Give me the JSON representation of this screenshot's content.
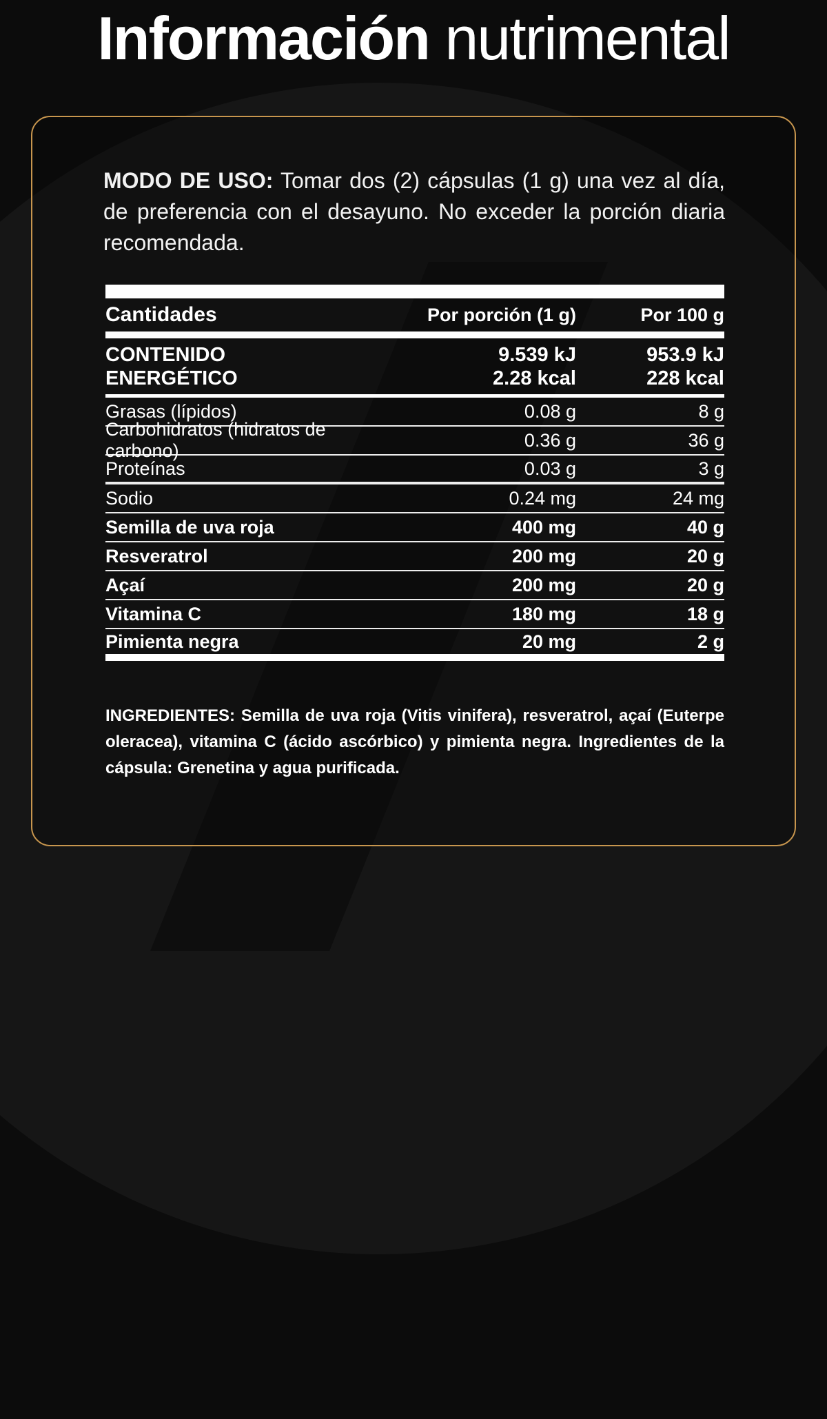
{
  "title": {
    "bold": "Información",
    "light": "nutrimental"
  },
  "modo_uso": {
    "label": "MODO DE USO:",
    "text": "Tomar dos (2) cápsulas (1 g) una vez al día, de preferencia con el desayuno. No exceder la porción diaria recomendada."
  },
  "table": {
    "headers": [
      "Cantidades",
      "Por porción (1 g)",
      "Por 100 g"
    ],
    "energy": {
      "label1": "CONTENIDO",
      "label2": "ENERGÉTICO",
      "per_portion_kj": "9.539 kJ",
      "per_portion_kcal": "2.28 kcal",
      "per100_kj": "953.9 kJ",
      "per100_kcal": "228 kcal"
    },
    "rows": [
      {
        "name": "Grasas (lípidos)",
        "portion": "0.08 g",
        "per100": "8 g"
      },
      {
        "name": "Carbohidratos (hidratos de carbono)",
        "portion": "0.36 g",
        "per100": "36 g"
      },
      {
        "name": "Proteínas",
        "portion": "0.03 g",
        "per100": "3 g"
      },
      {
        "name": "Sodio",
        "portion": "0.24 mg",
        "per100": "24 mg"
      },
      {
        "name": "Semilla de uva roja",
        "portion": "400 mg",
        "per100": "40 g"
      },
      {
        "name": "Resveratrol",
        "portion": "200 mg",
        "per100": "20 g"
      },
      {
        "name": "Açaí",
        "portion": "200 mg",
        "per100": "20 g"
      },
      {
        "name": "Vitamina C",
        "portion": "180 mg",
        "per100": "18 g"
      },
      {
        "name": "Pimienta negra",
        "portion": "20 mg",
        "per100": "2 g"
      }
    ]
  },
  "ingredients": "INGREDIENTES:  Semilla de uva roja (Vitis vinifera), resveratrol, açaí (Euterpe oleracea), vitamina C (ácido ascórbico) y pimienta negra. Ingredientes de la cápsula: Grenetina y agua purificada.",
  "colors": {
    "border": "#c8964e",
    "background": "#0c0c0c"
  }
}
